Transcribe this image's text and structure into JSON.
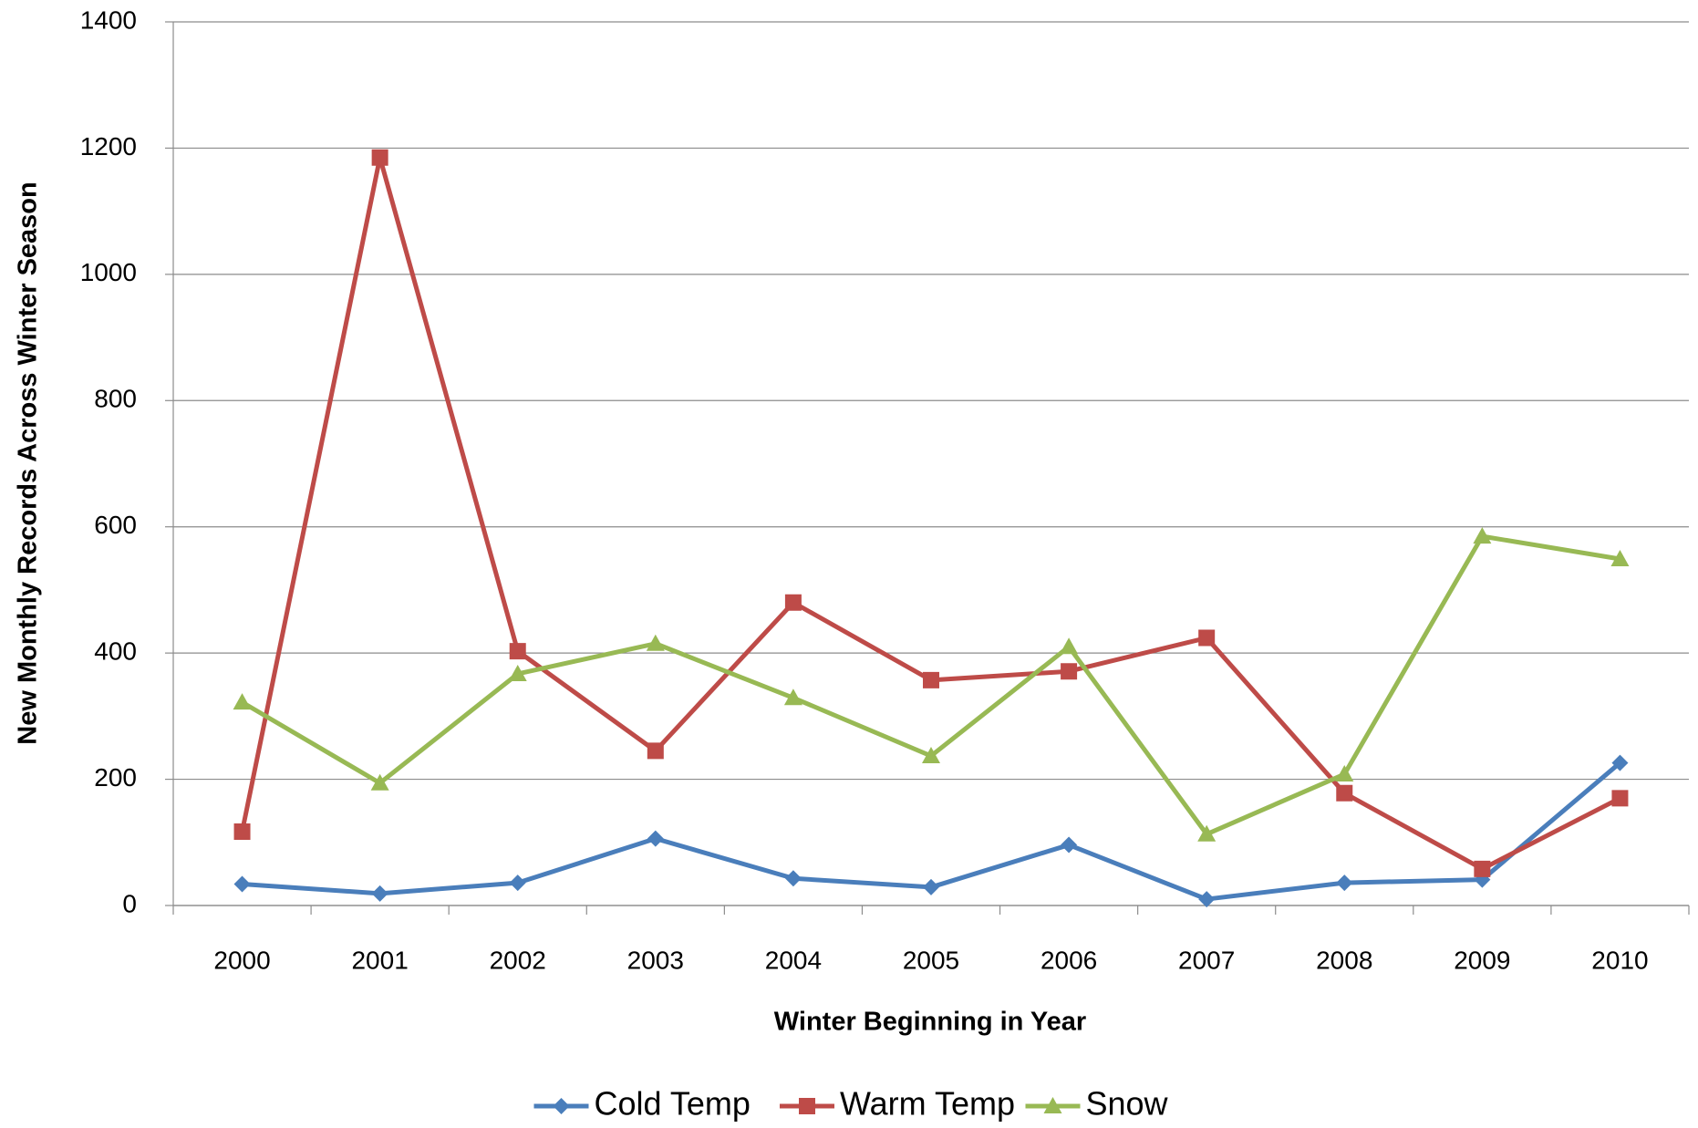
{
  "chart_data": {
    "type": "line",
    "x_label": "Winter Beginning in Year",
    "y_label": "New Monthly Records Across Winter Season",
    "categories": [
      "2000",
      "2001",
      "2002",
      "2003",
      "2004",
      "2005",
      "2006",
      "2007",
      "2008",
      "2009",
      "2010"
    ],
    "series": [
      {
        "name": "Cold Temp",
        "color": "#4a7ebb",
        "marker": "diamond",
        "values": [
          34,
          19,
          36,
          106,
          43,
          29,
          96,
          10,
          36,
          41,
          226
        ]
      },
      {
        "name": "Warm Temp",
        "color": "#be4b48",
        "marker": "square",
        "values": [
          117,
          1185,
          403,
          245,
          480,
          357,
          371,
          424,
          178,
          58,
          170
        ]
      },
      {
        "name": "Snow",
        "color": "#98b954",
        "marker": "triangle",
        "values": [
          322,
          194,
          367,
          415,
          329,
          237,
          410,
          113,
          208,
          585,
          549
        ]
      }
    ],
    "ylim": [
      0,
      1400
    ],
    "yticks": [
      0,
      200,
      400,
      600,
      800,
      1000,
      1200,
      1400
    ],
    "grid": true,
    "legend": "bottom"
  }
}
